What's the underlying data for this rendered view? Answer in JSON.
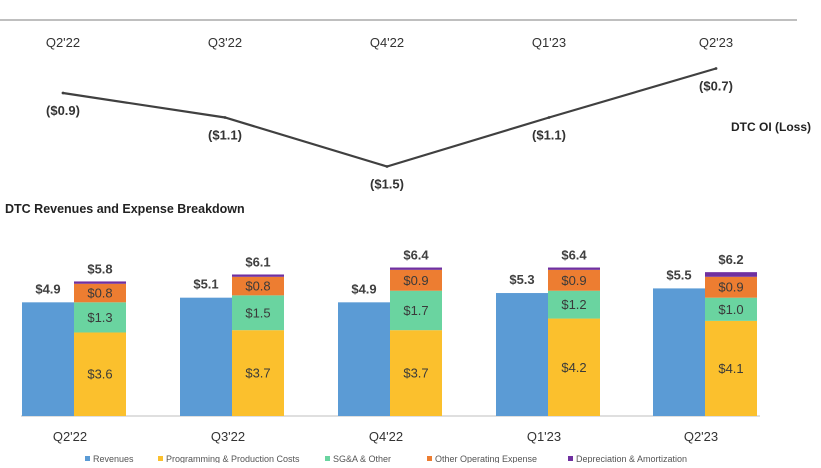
{
  "line_chart": {
    "series_label": "DTC OI (Loss)",
    "quarters": [
      "Q2'22",
      "Q3'22",
      "Q4'22",
      "Q1'23",
      "Q2'23"
    ],
    "values": [
      -0.9,
      -1.1,
      -1.5,
      -1.1,
      -0.7
    ],
    "value_labels": [
      "($0.9)",
      "($1.1)",
      "($1.5)",
      "($1.1)",
      "($0.7)"
    ]
  },
  "bar_chart": {
    "title": "DTC Revenues and Expense Breakdown",
    "quarters": [
      "Q2'22",
      "Q3'22",
      "Q4'22",
      "Q1'23",
      "Q2'23"
    ],
    "revenues": [
      4.9,
      5.1,
      4.9,
      5.3,
      5.5
    ],
    "revenue_labels": [
      "$4.9",
      "$5.1",
      "$4.9",
      "$5.3",
      "$5.5"
    ],
    "expense_totals": [
      "$5.8",
      "$6.1",
      "$6.4",
      "$6.4",
      "$6.2"
    ],
    "expense_segments": [
      {
        "name": "Programming & Production Costs",
        "values": [
          3.6,
          3.7,
          3.7,
          4.2,
          4.1
        ],
        "labels": [
          "$3.6",
          "$3.7",
          "$3.7",
          "$4.2",
          "$4.1"
        ]
      },
      {
        "name": "SG&A & Other",
        "values": [
          1.3,
          1.5,
          1.7,
          1.2,
          1.0
        ],
        "labels": [
          "$1.3",
          "$1.5",
          "$1.7",
          "$1.2",
          "$1.0"
        ]
      },
      {
        "name": "Other Operating Expense",
        "values": [
          0.8,
          0.8,
          0.9,
          0.9,
          0.9
        ],
        "labels": [
          "$0.8",
          "$0.8",
          "$0.9",
          "$0.9",
          "$0.9"
        ]
      },
      {
        "name": "Depreciation & Amortization",
        "values": [
          0.1,
          0.1,
          0.1,
          0.1,
          0.2
        ],
        "labels": [
          "",
          "",
          "",
          "",
          ""
        ]
      }
    ],
    "legend": [
      "Revenues",
      "Programming & Production Costs",
      "SG&A & Other",
      "Other Operating Expense",
      "Depreciation & Amortization"
    ]
  },
  "colors": {
    "revenues": "#5b9bd5",
    "programming": "#fbc02d",
    "sga": "#6ad4a0",
    "other_opex": "#ed7d31",
    "da": "#7030a0",
    "line": "#404040"
  },
  "chart_data": [
    {
      "type": "line",
      "title": "",
      "series": [
        {
          "name": "DTC OI (Loss)",
          "values": [
            -0.9,
            -1.1,
            -1.5,
            -1.1,
            -0.7
          ]
        }
      ],
      "categories": [
        "Q2'22",
        "Q3'22",
        "Q4'22",
        "Q1'23",
        "Q2'23"
      ],
      "xlabel": "",
      "ylabel": "",
      "ylim": [
        -1.6,
        -0.6
      ]
    },
    {
      "type": "bar",
      "title": "DTC Revenues and Expense Breakdown",
      "categories": [
        "Q2'22",
        "Q3'22",
        "Q4'22",
        "Q1'23",
        "Q2'23"
      ],
      "series": [
        {
          "name": "Revenues",
          "values": [
            4.9,
            5.1,
            4.9,
            5.3,
            5.5
          ]
        },
        {
          "name": "Programming & Production Costs",
          "values": [
            3.6,
            3.7,
            3.7,
            4.2,
            4.1
          ]
        },
        {
          "name": "SG&A & Other",
          "values": [
            1.3,
            1.5,
            1.7,
            1.2,
            1.0
          ]
        },
        {
          "name": "Other Operating Expense",
          "values": [
            0.8,
            0.8,
            0.9,
            0.9,
            0.9
          ]
        },
        {
          "name": "Depreciation & Amortization",
          "values": [
            0.1,
            0.1,
            0.1,
            0.1,
            0.2
          ]
        }
      ],
      "totals": [
        5.8,
        6.1,
        6.4,
        6.4,
        6.2
      ],
      "stacked_series": [
        "Programming & Production Costs",
        "SG&A & Other",
        "Other Operating Expense",
        "Depreciation & Amortization"
      ],
      "legend_position": "bottom",
      "xlabel": "",
      "ylabel": "",
      "ylim": [
        0,
        6.5
      ]
    }
  ]
}
